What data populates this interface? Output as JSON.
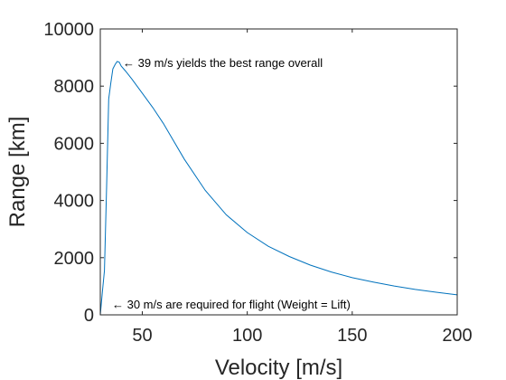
{
  "chart_data": {
    "type": "line",
    "xlabel": "Velocity [m/s]",
    "ylabel": "Range [km]",
    "xlim": [
      30,
      200
    ],
    "ylim": [
      0,
      10000
    ],
    "xticks": [
      50,
      100,
      150,
      200
    ],
    "yticks": [
      0,
      2000,
      4000,
      6000,
      8000,
      10000
    ],
    "grid": false,
    "series": [
      {
        "color": "#0072bd",
        "x": [
          30,
          31,
          32,
          33,
          34,
          35,
          36,
          37,
          38,
          39,
          40,
          42,
          45,
          50,
          55,
          60,
          70,
          80,
          90,
          100,
          110,
          120,
          130,
          140,
          150,
          160,
          170,
          180,
          190,
          200
        ],
        "y": [
          0,
          800,
          1550,
          4500,
          7550,
          8100,
          8600,
          8750,
          8860,
          8840,
          8700,
          8530,
          8250,
          7750,
          7250,
          6700,
          5450,
          4350,
          3500,
          2880,
          2400,
          2040,
          1740,
          1500,
          1300,
          1150,
          1010,
          890,
          790,
          700
        ]
      }
    ],
    "annotations": [
      {
        "text": "← 39 m/s yields the best range overall",
        "x": 39,
        "y": 8860
      },
      {
        "text": "← 30 m/s are required for flight (Weight = Lift)",
        "x": 30,
        "y": 300
      }
    ]
  }
}
